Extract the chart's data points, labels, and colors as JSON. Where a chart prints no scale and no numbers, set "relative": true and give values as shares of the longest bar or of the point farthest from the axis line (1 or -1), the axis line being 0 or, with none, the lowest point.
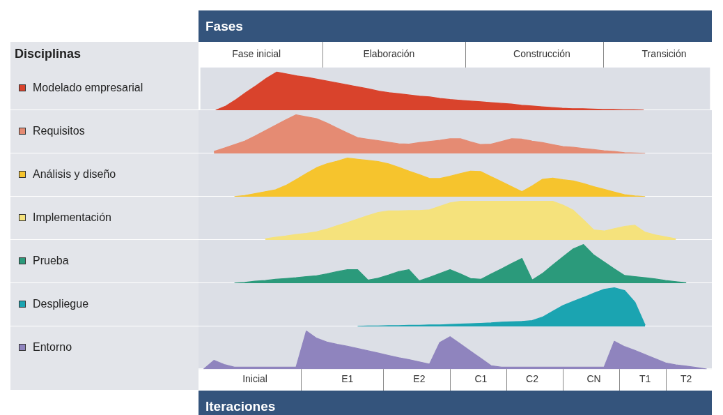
{
  "chart_data": [
    {
      "type": "area",
      "relative": true,
      "legend_title": "Disciplinas",
      "legend": "left",
      "xlabel": "Fases",
      "categories": [
        null,
        null,
        null,
        null,
        null,
        "Fase inicial",
        null,
        null,
        null,
        null,
        null,
        null,
        null,
        null,
        null,
        null,
        null,
        null,
        "Elaboración",
        null,
        null,
        null,
        null,
        null,
        null,
        null,
        null,
        null,
        null,
        null,
        null,
        null,
        null,
        "Construcción",
        null,
        null,
        null,
        null,
        null,
        null,
        null,
        null,
        null,
        null,
        null,
        "Transición",
        null,
        null,
        null,
        null
      ],
      "series": [
        {
          "name": "Modelado empresarial",
          "color": "#d9432c",
          "values": [
            null,
            0,
            0.11,
            0.28,
            0.47,
            0.65,
            0.84,
            1,
            0.95,
            0.9,
            0.86,
            0.81,
            0.76,
            0.71,
            0.66,
            0.61,
            0.56,
            0.5,
            0.46,
            0.43,
            0.4,
            0.37,
            0.35,
            0.31,
            0.28,
            0.26,
            0.24,
            0.22,
            0.2,
            0.18,
            0.16,
            0.13,
            0.11,
            0.09,
            0.07,
            0.05,
            0.04,
            0.04,
            0.03,
            0.02,
            0.02,
            0.01,
            0.01,
            0,
            null,
            null,
            null,
            null,
            null,
            null
          ]
        }
      ]
    },
    {
      "type": "area",
      "relative": true,
      "legend": "left",
      "tick_labels": false,
      "categories": [
        null,
        null,
        null,
        null,
        null,
        null,
        null,
        null,
        null,
        null,
        null,
        null,
        null,
        null,
        null,
        null,
        null,
        null,
        null,
        null,
        null,
        null,
        null,
        null,
        null,
        null,
        null,
        null,
        null,
        null,
        null,
        null,
        null,
        null,
        null,
        null,
        null,
        null,
        null,
        null,
        null,
        null,
        null,
        null,
        null,
        null,
        null,
        null,
        null,
        null
      ],
      "series": [
        {
          "name": "Requisitos",
          "color": "#e58b73",
          "values": [
            null,
            0.05,
            0.14,
            0.23,
            0.32,
            0.45,
            0.59,
            0.73,
            0.87,
            1,
            0.95,
            0.9,
            0.79,
            0.66,
            0.53,
            0.41,
            0.37,
            0.33,
            0.29,
            0.25,
            0.24,
            0.28,
            0.31,
            0.34,
            0.38,
            0.38,
            0.3,
            0.23,
            0.24,
            0.31,
            0.38,
            0.37,
            0.32,
            0.28,
            0.23,
            0.18,
            0.16,
            0.13,
            0.1,
            0.07,
            0.05,
            0.02,
            0.01,
            0,
            null,
            null,
            null,
            null,
            null,
            null
          ]
        }
      ]
    },
    {
      "type": "area",
      "relative": true,
      "legend": "left",
      "tick_labels": false,
      "categories": [
        null,
        null,
        null,
        null,
        null,
        null,
        null,
        null,
        null,
        null,
        null,
        null,
        null,
        null,
        null,
        null,
        null,
        null,
        null,
        null,
        null,
        null,
        null,
        null,
        null,
        null,
        null,
        null,
        null,
        null,
        null,
        null,
        null,
        null,
        null,
        null,
        null,
        null,
        null,
        null,
        null,
        null,
        null,
        null,
        null,
        null,
        null,
        null,
        null,
        null
      ],
      "series": [
        {
          "name": "Análisis y diseño",
          "color": "#f6c42d",
          "values": [
            null,
            null,
            null,
            0,
            0.03,
            0.08,
            0.13,
            0.18,
            0.29,
            0.44,
            0.6,
            0.75,
            0.85,
            0.92,
            1,
            0.97,
            0.94,
            0.91,
            0.85,
            0.76,
            0.66,
            0.57,
            0.47,
            0.47,
            0.53,
            0.6,
            0.66,
            0.65,
            0.52,
            0.39,
            0.26,
            0.13,
            0.28,
            0.45,
            0.48,
            0.44,
            0.41,
            0.34,
            0.26,
            0.19,
            0.12,
            0.05,
            0.02,
            0,
            null,
            null,
            null,
            null,
            null,
            null
          ]
        }
      ]
    },
    {
      "type": "area",
      "relative": true,
      "legend": "left",
      "tick_labels": false,
      "categories": [
        null,
        null,
        null,
        null,
        null,
        null,
        null,
        null,
        null,
        null,
        null,
        null,
        null,
        null,
        null,
        null,
        null,
        null,
        null,
        null,
        null,
        null,
        null,
        null,
        null,
        null,
        null,
        null,
        null,
        null,
        null,
        null,
        null,
        null,
        null,
        null,
        null,
        null,
        null,
        null,
        null,
        null,
        null,
        null,
        null,
        null,
        null,
        null,
        null,
        null
      ],
      "series": [
        {
          "name": "Implementación",
          "color": "#f5e27c",
          "values": [
            null,
            null,
            null,
            null,
            null,
            null,
            0.03,
            0.07,
            0.1,
            0.14,
            0.17,
            0.21,
            0.28,
            0.37,
            0.45,
            0.54,
            0.63,
            0.71,
            0.75,
            0.75,
            0.76,
            0.76,
            0.78,
            0.87,
            0.96,
            1,
            1,
            1,
            1,
            1,
            1,
            1,
            1,
            1,
            1,
            0.9,
            0.77,
            0.52,
            0.26,
            0.23,
            0.29,
            0.35,
            0.38,
            0.2,
            0.13,
            0.08,
            0.03,
            null,
            null,
            null
          ]
        }
      ]
    },
    {
      "type": "area",
      "relative": true,
      "legend": "left",
      "tick_labels": false,
      "categories": [
        null,
        null,
        null,
        null,
        null,
        null,
        null,
        null,
        null,
        null,
        null,
        null,
        null,
        null,
        null,
        null,
        null,
        null,
        null,
        null,
        null,
        null,
        null,
        null,
        null,
        null,
        null,
        null,
        null,
        null,
        null,
        null,
        null,
        null,
        null,
        null,
        null,
        null,
        null,
        null,
        null,
        null,
        null,
        null,
        null,
        null,
        null,
        null,
        null,
        null
      ],
      "series": [
        {
          "name": "Prueba",
          "color": "#2b9a7b",
          "values": [
            null,
            null,
            null,
            0,
            0.02,
            0.05,
            0.07,
            0.1,
            0.12,
            0.14,
            0.17,
            0.19,
            0.24,
            0.3,
            0.35,
            0.35,
            0.08,
            0.13,
            0.21,
            0.3,
            0.35,
            0.06,
            0.15,
            0.25,
            0.35,
            0.24,
            0.12,
            0.1,
            0.24,
            0.37,
            0.51,
            0.64,
            0.08,
            0.25,
            0.47,
            0.68,
            0.89,
            1,
            0.73,
            0.55,
            0.37,
            0.2,
            0.17,
            0.14,
            0.11,
            0.07,
            0.04,
            0.01,
            null,
            null
          ]
        }
      ]
    },
    {
      "type": "area",
      "relative": true,
      "legend": "left",
      "tick_labels": false,
      "categories": [
        null,
        null,
        null,
        null,
        null,
        null,
        null,
        null,
        null,
        null,
        null,
        null,
        null,
        null,
        null,
        null,
        null,
        null,
        null,
        null,
        null,
        null,
        null,
        null,
        null,
        null,
        null,
        null,
        null,
        null,
        null,
        null,
        null,
        null,
        null,
        null,
        null,
        null,
        null,
        null,
        null,
        null,
        null,
        null,
        null,
        null,
        null,
        null,
        null,
        null
      ],
      "series": [
        {
          "name": "Despliegue",
          "color": "#1ba4b1",
          "values": [
            null,
            null,
            null,
            null,
            null,
            null,
            null,
            null,
            null,
            null,
            null,
            null,
            null,
            null,
            null,
            0,
            0.01,
            0.01,
            0.02,
            0.02,
            0.03,
            0.03,
            0.04,
            0.04,
            0.05,
            0.06,
            0.07,
            0.08,
            0.09,
            0.11,
            0.12,
            0.13,
            0.15,
            0.24,
            0.39,
            0.54,
            0.65,
            0.75,
            0.86,
            0.96,
            1,
            0.93,
            0.63,
            0.03,
            null,
            null,
            null,
            null,
            null,
            null
          ]
        }
      ]
    },
    {
      "type": "area",
      "relative": true,
      "legend": "left",
      "xlabel": "Iteraciones",
      "categories": [
        null,
        null,
        null,
        null,
        null,
        "Inicial",
        null,
        null,
        null,
        null,
        null,
        null,
        null,
        null,
        "E1",
        null,
        null,
        null,
        null,
        null,
        null,
        "E2",
        null,
        null,
        null,
        null,
        null,
        "C1",
        null,
        null,
        null,
        null,
        "C2",
        null,
        null,
        null,
        null,
        null,
        "CN",
        null,
        null,
        null,
        null,
        "T1",
        null,
        null,
        null,
        "T2",
        null,
        null
      ],
      "series": [
        {
          "name": "Entorno",
          "color": "#8f84be",
          "values": [
            0,
            0.23,
            0.12,
            0.05,
            0.05,
            0.05,
            0.05,
            0.05,
            0.05,
            0.05,
            1,
            0.81,
            0.71,
            0.65,
            0.6,
            0.54,
            0.48,
            0.42,
            0.36,
            0.3,
            0.25,
            0.19,
            0.13,
            0.7,
            0.85,
            0.66,
            0.47,
            0.28,
            0.09,
            0.05,
            0.05,
            0.05,
            0.05,
            0.05,
            0.05,
            0.05,
            0.05,
            0.05,
            0.05,
            0.05,
            0.73,
            0.59,
            0.49,
            0.38,
            0.27,
            0.16,
            0.11,
            0.08,
            0.04,
            0
          ]
        }
      ]
    }
  ]
}
